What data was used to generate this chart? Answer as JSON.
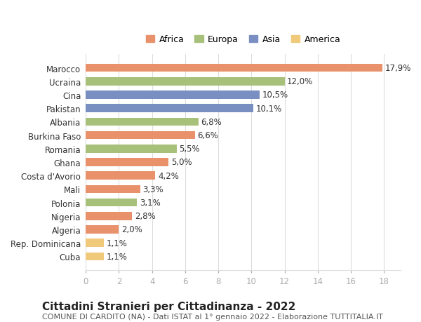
{
  "categories": [
    "Cuba",
    "Rep. Dominicana",
    "Algeria",
    "Nigeria",
    "Polonia",
    "Mali",
    "Costa d'Avorio",
    "Ghana",
    "Romania",
    "Burkina Faso",
    "Albania",
    "Pakistan",
    "Cina",
    "Ucraina",
    "Marocco"
  ],
  "values": [
    1.1,
    1.1,
    2.0,
    2.8,
    3.1,
    3.3,
    4.2,
    5.0,
    5.5,
    6.6,
    6.8,
    10.1,
    10.5,
    12.0,
    17.9
  ],
  "labels": [
    "1,1%",
    "1,1%",
    "2,0%",
    "2,8%",
    "3,1%",
    "3,3%",
    "4,2%",
    "5,0%",
    "5,5%",
    "6,6%",
    "6,8%",
    "10,1%",
    "10,5%",
    "12,0%",
    "17,9%"
  ],
  "colors": [
    "#f0c97a",
    "#f0c97a",
    "#e8916a",
    "#e8916a",
    "#a8c17a",
    "#e8916a",
    "#e8916a",
    "#e8916a",
    "#a8c17a",
    "#e8916a",
    "#a8c17a",
    "#7a8fc1",
    "#7a8fc1",
    "#a8c17a",
    "#e8916a"
  ],
  "legend": [
    {
      "label": "Africa",
      "color": "#e8916a"
    },
    {
      "label": "Europa",
      "color": "#a8c17a"
    },
    {
      "label": "Asia",
      "color": "#7a8fc1"
    },
    {
      "label": "America",
      "color": "#f0c97a"
    }
  ],
  "xlim": [
    0,
    19
  ],
  "xticks": [
    0,
    2,
    4,
    6,
    8,
    10,
    12,
    14,
    16,
    18
  ],
  "title": "Cittadini Stranieri per Cittadinanza - 2022",
  "subtitle": "COMUNE DI CARDITO (NA) - Dati ISTAT al 1° gennaio 2022 - Elaborazione TUTTITALIA.IT",
  "title_fontsize": 11,
  "subtitle_fontsize": 8,
  "label_fontsize": 8.5,
  "tick_fontsize": 8.5,
  "background_color": "#ffffff",
  "grid_color": "#dddddd",
  "bar_height": 0.6
}
